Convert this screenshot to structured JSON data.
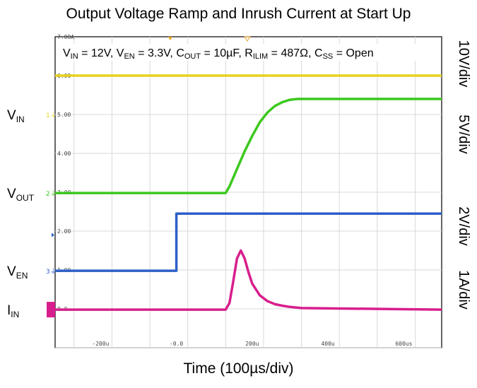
{
  "chart_data": {
    "type": "line",
    "title": "Output Voltage Ramp and Inrush Current at Start Up",
    "xlabel": "Time (100µs/div)",
    "conditions": "VIN = 12V, VEN = 3.3V, COUT = 10µF, RILIM = 487Ω, CSS = Open",
    "x_ticks": [
      "-200u",
      "-0.0",
      "200u",
      "400u",
      "600us"
    ],
    "x_tick_values": [
      -200,
      0,
      200,
      400,
      600
    ],
    "y_ticks": [
      "7.00A",
      "6.00",
      "5.00",
      "4.00",
      "3.00",
      "2.00",
      "1.00",
      "0.0"
    ],
    "y_tick_values": [
      7,
      6,
      5,
      4,
      3,
      2,
      1,
      0
    ],
    "xlim": [
      -320,
      700
    ],
    "ylim": [
      -1,
      7
    ],
    "units": {
      "x": "µs",
      "y": "div"
    },
    "scales": [
      "10V/div",
      "5V/div",
      "2V/div",
      "1A/div"
    ],
    "grid": true,
    "series": [
      {
        "name": "VIN",
        "label_main": "V",
        "label_sub": "IN",
        "channel": "1",
        "color": "#e6d21e",
        "x": [
          -320,
          700
        ],
        "y": [
          6.0,
          6.0
        ]
      },
      {
        "name": "VOUT",
        "label_main": "V",
        "label_sub": "OUT",
        "channel": "2",
        "color": "#3cc81e",
        "x": [
          -320,
          130,
          140,
          160,
          180,
          200,
          220,
          240,
          260,
          280,
          300,
          320,
          340,
          700
        ],
        "y": [
          2.98,
          2.98,
          3.15,
          3.6,
          4.05,
          4.45,
          4.8,
          5.05,
          5.22,
          5.32,
          5.38,
          5.4,
          5.4,
          5.4
        ]
      },
      {
        "name": "VEN",
        "label_main": "V",
        "label_sub": "EN",
        "channel": "3",
        "color": "#2c5fc8",
        "x": [
          -320,
          0,
          0,
          700
        ],
        "y": [
          0.98,
          0.98,
          2.45,
          2.45
        ]
      },
      {
        "name": "IIN",
        "label_main": "I",
        "label_sub": "IN",
        "channel": "4",
        "color": "#d81e8c",
        "x": [
          -320,
          130,
          140,
          150,
          160,
          170,
          180,
          190,
          200,
          220,
          240,
          260,
          280,
          300,
          330,
          700
        ],
        "y": [
          -0.02,
          -0.02,
          0.15,
          0.7,
          1.3,
          1.5,
          1.3,
          0.95,
          0.65,
          0.35,
          0.2,
          0.12,
          0.08,
          0.05,
          0.02,
          -0.02
        ]
      }
    ]
  }
}
